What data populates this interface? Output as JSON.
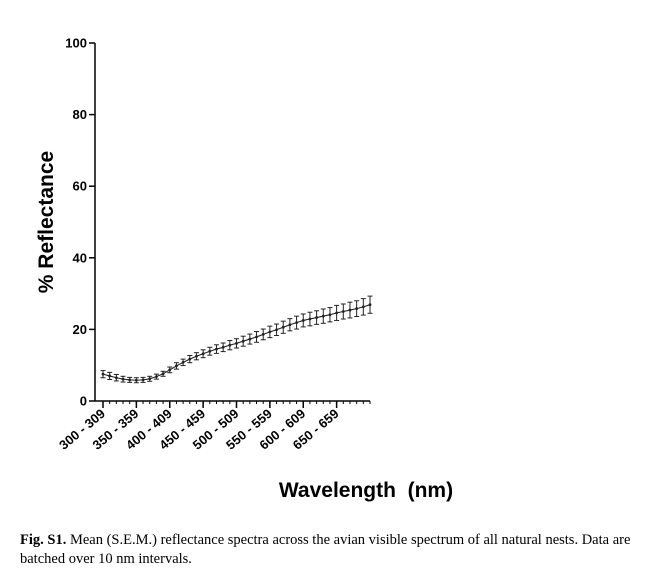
{
  "chart_data": {
    "type": "line",
    "title": "",
    "xlabel": "Wavelength  (nm)",
    "ylabel": "% Reflectance",
    "ylim": [
      0,
      100
    ],
    "yticks": [
      0,
      20,
      40,
      60,
      80,
      100
    ],
    "xtick_labels": [
      "300 - 309",
      "350 - 359",
      "400 - 409",
      "450 - 459",
      "500 - 509",
      "550 - 559",
      "600 - 609",
      "650 - 659"
    ],
    "xtick_wavelengths": [
      300,
      350,
      400,
      450,
      500,
      550,
      600,
      650
    ],
    "x_wavelength": [
      300,
      310,
      320,
      330,
      340,
      350,
      360,
      370,
      380,
      390,
      400,
      410,
      420,
      430,
      440,
      450,
      460,
      470,
      480,
      490,
      500,
      510,
      520,
      530,
      540,
      550,
      560,
      570,
      580,
      590,
      600,
      610,
      620,
      630,
      640,
      650,
      660,
      670,
      680,
      690,
      700
    ],
    "mean": [
      7.5,
      7.0,
      6.5,
      6.1,
      5.9,
      5.8,
      5.9,
      6.2,
      6.8,
      7.6,
      8.7,
      9.8,
      10.8,
      11.7,
      12.5,
      13.2,
      13.9,
      14.5,
      15.0,
      15.6,
      16.1,
      16.7,
      17.3,
      17.9,
      18.6,
      19.3,
      19.9,
      20.6,
      21.3,
      21.9,
      22.5,
      22.9,
      23.3,
      23.7,
      24.1,
      24.6,
      25.0,
      25.4,
      25.8,
      26.3,
      26.9
    ],
    "sem": [
      1.0,
      1.0,
      0.9,
      0.8,
      0.7,
      0.7,
      0.7,
      0.7,
      0.7,
      0.7,
      0.8,
      0.9,
      0.9,
      1.0,
      1.0,
      1.1,
      1.1,
      1.2,
      1.2,
      1.3,
      1.3,
      1.4,
      1.4,
      1.5,
      1.5,
      1.6,
      1.6,
      1.7,
      1.7,
      1.8,
      1.8,
      1.9,
      1.9,
      2.0,
      2.0,
      2.1,
      2.1,
      2.2,
      2.2,
      2.3,
      2.4
    ],
    "grid": false,
    "legend": "none"
  },
  "caption": {
    "label": "Fig. S1.",
    "text": " Mean (S.E.M.) reflectance spectra across the avian visible spectrum of all natural nests. Data are batched over 10 nm intervals."
  }
}
